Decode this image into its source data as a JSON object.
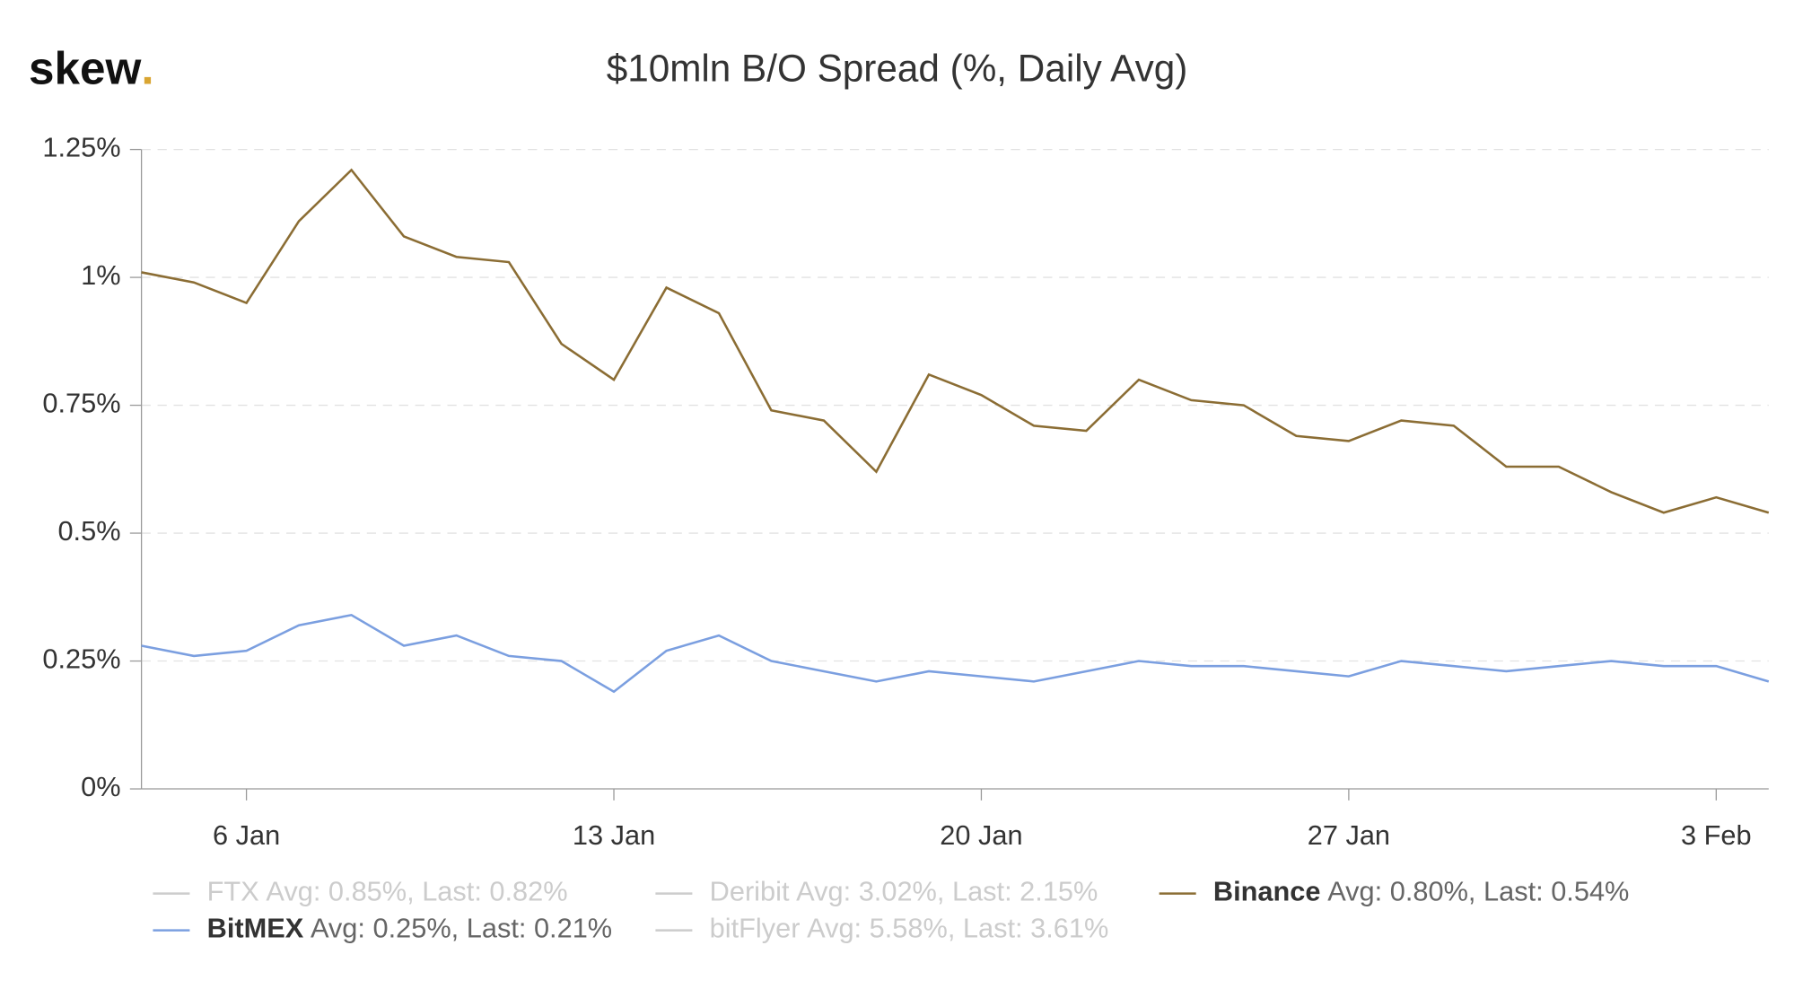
{
  "logo": {
    "text": "skew",
    "dot": "."
  },
  "chart_data": {
    "type": "line",
    "title": "$10mln B/O Spread (%, Daily Avg)",
    "categories": [
      null,
      null,
      "6 Jan",
      null,
      null,
      null,
      null,
      null,
      null,
      "13 Jan",
      null,
      null,
      null,
      null,
      null,
      null,
      "20 Jan",
      null,
      null,
      null,
      null,
      null,
      null,
      "27 Jan",
      null,
      null,
      null,
      null,
      null,
      null,
      "3 Feb",
      null
    ],
    "ylim": [
      0,
      1.25
    ],
    "yticks": [
      {
        "value": 0,
        "label": "0%"
      },
      {
        "value": 0.25,
        "label": "0.25%"
      },
      {
        "value": 0.5,
        "label": "0.5%"
      },
      {
        "value": 0.75,
        "label": "0.75%"
      },
      {
        "value": 1,
        "label": "1%"
      },
      {
        "value": 1.25,
        "label": "1.25%"
      }
    ],
    "grid": true,
    "legend": "bottom",
    "series": [
      {
        "name": "FTX",
        "summary": "Avg: 0.85%, Last: 0.82%",
        "color": "#cccccc",
        "visible": false
      },
      {
        "name": "Deribit",
        "summary": "Avg: 3.02%, Last: 2.15%",
        "color": "#cccccc",
        "visible": false
      },
      {
        "name": "Binance",
        "summary": "Avg: 0.80%, Last: 0.54%",
        "color": "#8b6d34",
        "visible": true,
        "values": [
          1.01,
          0.99,
          0.95,
          1.11,
          1.21,
          1.08,
          1.04,
          1.03,
          0.87,
          0.8,
          0.98,
          0.93,
          0.74,
          0.72,
          0.62,
          0.81,
          0.77,
          0.71,
          0.7,
          0.8,
          0.76,
          0.75,
          0.69,
          0.68,
          0.72,
          0.71,
          0.63,
          0.63,
          0.58,
          0.54,
          0.57,
          0.54
        ]
      },
      {
        "name": "BitMEX",
        "summary": "Avg: 0.25%, Last: 0.21%",
        "color": "#7b9fe0",
        "visible": true,
        "values": [
          0.28,
          0.26,
          0.27,
          0.32,
          0.34,
          0.28,
          0.3,
          0.26,
          0.25,
          0.19,
          0.27,
          0.3,
          0.25,
          0.23,
          0.21,
          0.23,
          0.22,
          0.21,
          0.23,
          0.25,
          0.24,
          0.24,
          0.23,
          0.22,
          0.25,
          0.24,
          0.23,
          0.24,
          0.25,
          0.24,
          0.24,
          0.21
        ]
      },
      {
        "name": "bitFlyer",
        "summary": "Avg: 5.58%, Last: 3.61%",
        "color": "#cccccc",
        "visible": false
      }
    ]
  }
}
